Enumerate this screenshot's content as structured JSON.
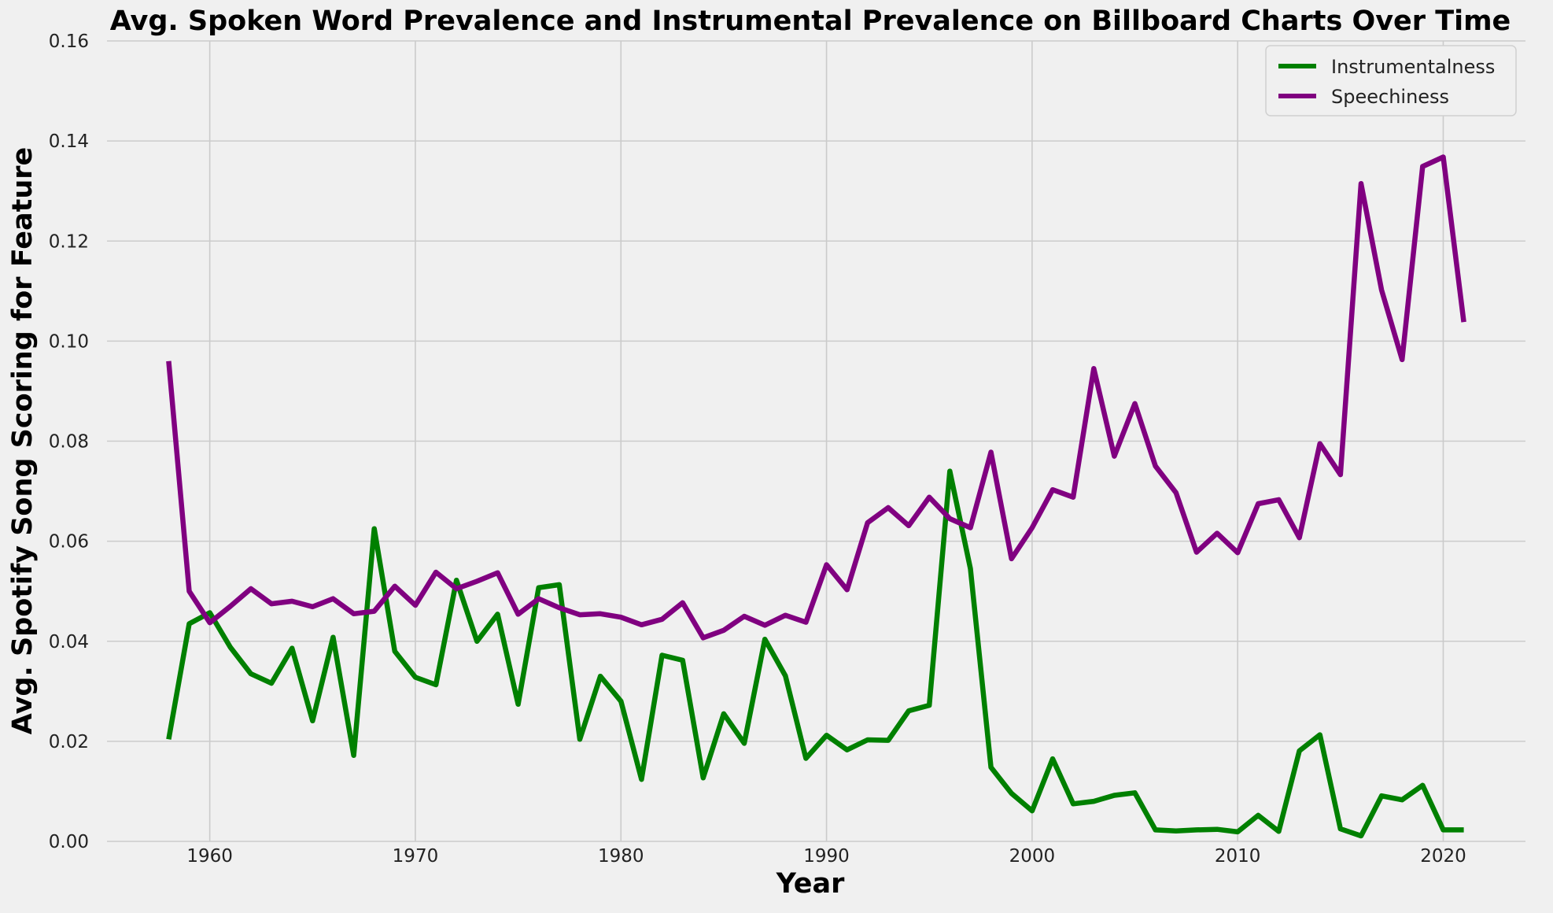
{
  "chart_data": {
    "type": "line",
    "title": "Avg. Spoken Word Prevalence and Instrumental Prevalence on Billboard Charts Over Time",
    "xlabel": "Year",
    "ylabel": "Avg. Spotify Song Scoring for Feature",
    "xlim": [
      1955,
      2024
    ],
    "ylim": [
      0,
      0.16
    ],
    "xticks": [
      1960,
      1970,
      1980,
      1990,
      2000,
      2010,
      2020
    ],
    "yticks": [
      0.0,
      0.02,
      0.04,
      0.06,
      0.08,
      0.1,
      0.12,
      0.14,
      0.16
    ],
    "ytick_labels": [
      "0.00",
      "0.02",
      "0.04",
      "0.06",
      "0.08",
      "0.10",
      "0.12",
      "0.14",
      "0.16"
    ],
    "grid": true,
    "legend_position": "top-right",
    "x": [
      1958,
      1959,
      1960,
      1961,
      1962,
      1963,
      1964,
      1965,
      1966,
      1967,
      1968,
      1969,
      1970,
      1971,
      1972,
      1973,
      1974,
      1975,
      1976,
      1977,
      1978,
      1979,
      1980,
      1981,
      1982,
      1983,
      1984,
      1985,
      1986,
      1987,
      1988,
      1989,
      1990,
      1991,
      1992,
      1993,
      1994,
      1995,
      1996,
      1997,
      1998,
      1999,
      2000,
      2001,
      2002,
      2003,
      2004,
      2005,
      2006,
      2007,
      2008,
      2009,
      2010,
      2011,
      2012,
      2013,
      2014,
      2015,
      2016,
      2017,
      2018,
      2019,
      2020,
      2021
    ],
    "series": [
      {
        "name": "Instrumentalness",
        "color": "#008000",
        "values": [
          0.0204,
          0.0435,
          0.0457,
          0.0388,
          0.0335,
          0.0316,
          0.0386,
          0.0241,
          0.0408,
          0.0172,
          0.0625,
          0.038,
          0.0328,
          0.0313,
          0.0522,
          0.04,
          0.0454,
          0.0274,
          0.0507,
          0.0513,
          0.0204,
          0.033,
          0.028,
          0.0124,
          0.0372,
          0.0362,
          0.0127,
          0.0255,
          0.0196,
          0.0404,
          0.0331,
          0.0166,
          0.0212,
          0.0183,
          0.0203,
          0.0202,
          0.0261,
          0.0272,
          0.074,
          0.0545,
          0.0148,
          0.0096,
          0.0061,
          0.0165,
          0.0075,
          0.008,
          0.0092,
          0.0097,
          0.0023,
          0.0021,
          0.0023,
          0.0024,
          0.0019,
          0.0052,
          0.002,
          0.0181,
          0.0213,
          0.0025,
          0.0011,
          0.0091,
          0.0083,
          0.0112,
          0.0023,
          0.0023
        ]
      },
      {
        "name": "Speechiness",
        "color": "#800080",
        "values": [
          0.096,
          0.05,
          0.0437,
          0.047,
          0.0505,
          0.0475,
          0.048,
          0.0469,
          0.0485,
          0.0455,
          0.046,
          0.051,
          0.0472,
          0.0538,
          0.0505,
          0.052,
          0.0537,
          0.0454,
          0.0485,
          0.0467,
          0.0453,
          0.0455,
          0.0448,
          0.0433,
          0.0444,
          0.0477,
          0.0407,
          0.0422,
          0.045,
          0.0432,
          0.0452,
          0.0438,
          0.0553,
          0.0503,
          0.0637,
          0.0667,
          0.0631,
          0.0688,
          0.0645,
          0.0627,
          0.0778,
          0.0565,
          0.0627,
          0.0703,
          0.0688,
          0.0945,
          0.077,
          0.0875,
          0.075,
          0.0697,
          0.0578,
          0.0616,
          0.0577,
          0.0675,
          0.0683,
          0.0607,
          0.0795,
          0.0733,
          0.1315,
          0.1102,
          0.0963,
          0.1349,
          0.1368,
          0.1038
        ]
      }
    ]
  }
}
